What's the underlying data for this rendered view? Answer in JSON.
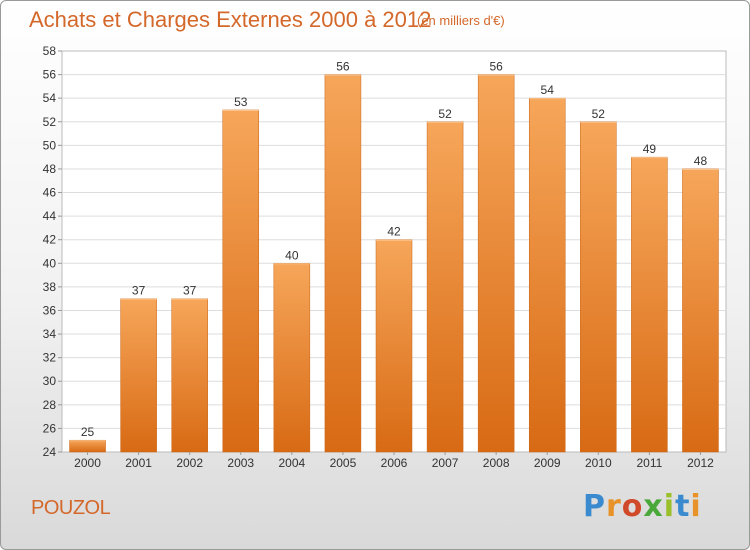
{
  "chart_data": {
    "type": "bar",
    "title": "Achats et Charges Externes 2000 à 2012",
    "subtitle": "(en milliers d'€)",
    "categories": [
      "2000",
      "2001",
      "2002",
      "2003",
      "2004",
      "2005",
      "2006",
      "2007",
      "2008",
      "2009",
      "2010",
      "2011",
      "2012"
    ],
    "values": [
      25,
      37,
      37,
      53,
      40,
      56,
      42,
      52,
      56,
      54,
      52,
      49,
      48
    ],
    "ylim": [
      24,
      58
    ],
    "yticks": [
      24,
      26,
      28,
      30,
      32,
      34,
      36,
      38,
      40,
      42,
      44,
      46,
      48,
      50,
      52,
      54,
      56,
      58
    ],
    "grid": true,
    "bar_color": "#f0913a",
    "bar_color_top": "#f6a65a",
    "bar_color_bottom": "#d86a14"
  },
  "footer": {
    "location": "POUZOL",
    "logo_letters": [
      "P",
      "r",
      "o",
      "x",
      "i",
      "t",
      "i"
    ]
  }
}
